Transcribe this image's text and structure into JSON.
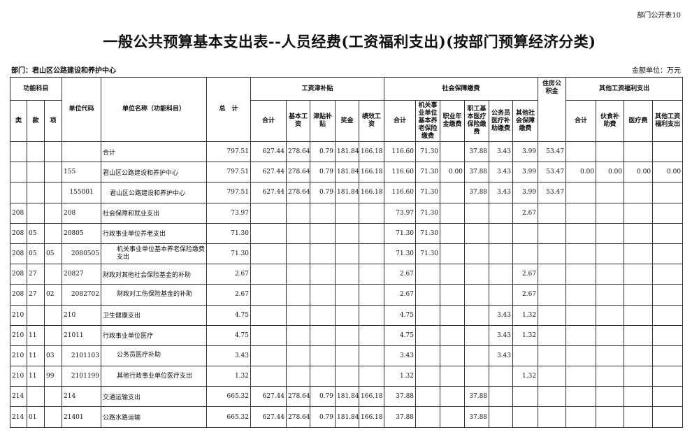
{
  "corner_label": "部门公开表10",
  "title": "一般公共预算基本支出表--人员经费(工资福利支出)(按部门预算经济分类)",
  "department": "部门：君山区公路建设和养护中心",
  "unit": "金额单位：万元",
  "headers": {
    "func_subject": "功能科目",
    "lei": "类",
    "kuan": "款",
    "xiang": "项",
    "unit_code": "单位代码",
    "unit_name": "单位名称（功能科目）",
    "total": "总　计",
    "wage_group": "工资津补贴",
    "wage_total": "合计",
    "basic_wage": "基本工资",
    "allowance": "津贴补贴",
    "bonus": "奖金",
    "performance": "绩效工资",
    "ss_group": "社会保障缴费",
    "ss_total": "合计",
    "pension": "机关事业单位基本养老保险缴费",
    "occupational": "职业年金缴费",
    "medical": "职工基本医疗保险缴费",
    "civil_medical": "公务员医疗补助缴费",
    "other_ss": "其他社会保障缴费",
    "housing": "住房公积金",
    "other_group": "其他工资福利支出",
    "other_total": "合计",
    "meal": "伙食补助费",
    "medical_fee": "医疗费",
    "other_welfare": "其他工资福利支出"
  },
  "rows": [
    [
      "",
      "",
      "",
      "",
      "合计",
      "797.51",
      "627.44",
      "278.64",
      "0.79",
      "181.84",
      "166.18",
      "116.60",
      "71.30",
      "",
      "37.88",
      "3.43",
      "3.99",
      "53.47",
      "",
      "",
      "",
      ""
    ],
    [
      "",
      "",
      "",
      "155",
      "君山区公路建设和养护中心",
      "797.51",
      "627.44",
      "278.64",
      "0.79",
      "181.84",
      "166.18",
      "116.60",
      "71.30",
      "0.00",
      "37.88",
      "3.43",
      "3.99",
      "53.47",
      "0.00",
      "0.00",
      "0.00",
      "0.00"
    ],
    [
      "",
      "",
      "",
      "155001",
      "君山区公路建设和养护中心",
      "797.51",
      "627.44",
      "278.64",
      "0.79",
      "181.84",
      "166.18",
      "116.60",
      "71.30",
      "",
      "37.88",
      "3.43",
      "3.99",
      "53.47",
      "",
      "",
      "",
      ""
    ],
    [
      "208",
      "",
      "",
      "208",
      "社会保障和就业支出",
      "73.97",
      "",
      "",
      "",
      "",
      "",
      "73.97",
      "71.30",
      "",
      "",
      "",
      "2.67",
      "",
      "",
      "",
      "",
      ""
    ],
    [
      "208",
      "05",
      "",
      "20805",
      "行政事业单位养老支出",
      "71.30",
      "",
      "",
      "",
      "",
      "",
      "71.30",
      "71.30",
      "",
      "",
      "",
      "",
      "",
      "",
      "",
      "",
      ""
    ],
    [
      "208",
      "05",
      "05",
      "2080505",
      "机关事业单位基本养老保险缴费支出",
      "71.30",
      "",
      "",
      "",
      "",
      "",
      "71.30",
      "71.30",
      "",
      "",
      "",
      "",
      "",
      "",
      "",
      "",
      ""
    ],
    [
      "208",
      "27",
      "",
      "20827",
      "财政对其他社会保险基金的补助",
      "2.67",
      "",
      "",
      "",
      "",
      "",
      "2.67",
      "",
      "",
      "",
      "",
      "2.67",
      "",
      "",
      "",
      "",
      ""
    ],
    [
      "208",
      "27",
      "02",
      "2082702",
      "财政对工伤保险基金的补助",
      "2.67",
      "",
      "",
      "",
      "",
      "",
      "2.67",
      "",
      "",
      "",
      "",
      "2.67",
      "",
      "",
      "",
      "",
      ""
    ],
    [
      "210",
      "",
      "",
      "210",
      "卫生健康支出",
      "4.75",
      "",
      "",
      "",
      "",
      "",
      "4.75",
      "",
      "",
      "",
      "3.43",
      "1.32",
      "",
      "",
      "",
      "",
      ""
    ],
    [
      "210",
      "11",
      "",
      "21011",
      "行政事业单位医疗",
      "4.75",
      "",
      "",
      "",
      "",
      "",
      "4.75",
      "",
      "",
      "",
      "3.43",
      "1.32",
      "",
      "",
      "",
      "",
      ""
    ],
    [
      "210",
      "11",
      "03",
      "2101103",
      "公务员医疗补助",
      "3.43",
      "",
      "",
      "",
      "",
      "",
      "3.43",
      "",
      "",
      "",
      "3.43",
      "",
      "",
      "",
      "",
      "",
      ""
    ],
    [
      "210",
      "11",
      "99",
      "2101199",
      "其他行政事业单位医疗支出",
      "1.32",
      "",
      "",
      "",
      "",
      "",
      "1.32",
      "",
      "",
      "",
      "",
      "1.32",
      "",
      "",
      "",
      "",
      ""
    ],
    [
      "214",
      "",
      "",
      "214",
      "交通运输支出",
      "665.32",
      "627.44",
      "278.64",
      "0.79",
      "181.84",
      "166.18",
      "37.88",
      "",
      "",
      "37.88",
      "",
      "",
      "",
      "",
      "",
      "",
      ""
    ],
    [
      "214",
      "01",
      "",
      "21401",
      "公路水路运输",
      "665.32",
      "627.44",
      "278.64",
      "0.79",
      "181.84",
      "166.18",
      "37.88",
      "",
      "",
      "37.88",
      "",
      "",
      "",
      "",
      "",
      "",
      ""
    ]
  ]
}
